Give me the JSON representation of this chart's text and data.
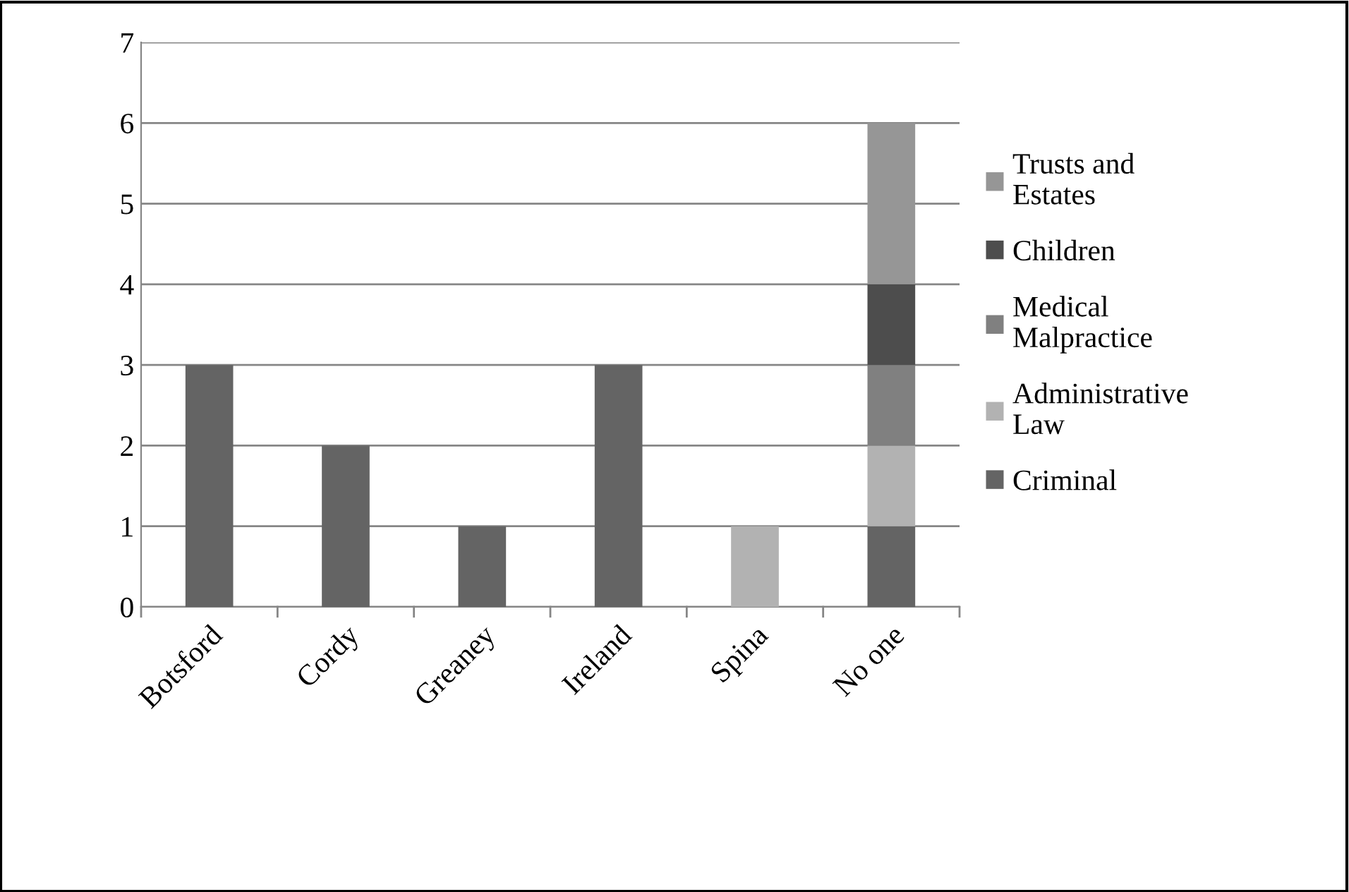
{
  "chart_data": {
    "type": "bar",
    "stacked": true,
    "categories": [
      "Botsford",
      "Cordy",
      "Greaney",
      "Ireland",
      "Spina",
      "No one"
    ],
    "series": [
      {
        "name": "Criminal",
        "color": "#646464",
        "values": [
          3,
          2,
          1,
          3,
          null,
          1
        ]
      },
      {
        "name": "Administrative\nLaw",
        "color": "#b2b2b2",
        "values": [
          null,
          null,
          null,
          null,
          1,
          1
        ]
      },
      {
        "name": "Medical\nMalpractice",
        "color": "#808080",
        "values": [
          null,
          null,
          null,
          null,
          null,
          1
        ]
      },
      {
        "name": "Children",
        "color": "#4d4d4d",
        "values": [
          null,
          null,
          null,
          null,
          null,
          1
        ]
      },
      {
        "name": "Trusts and\nEstates",
        "color": "#969696",
        "values": [
          null,
          null,
          null,
          null,
          null,
          2
        ]
      }
    ],
    "ylim": [
      0,
      7
    ],
    "yticks": [
      0,
      1,
      2,
      3,
      4,
      5,
      6,
      7
    ],
    "grid": "y",
    "legend": "right"
  }
}
